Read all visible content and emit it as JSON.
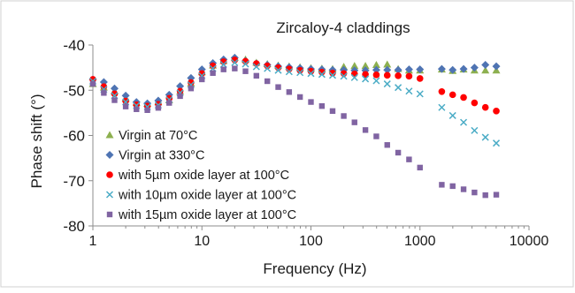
{
  "chart_data": {
    "type": "scatter",
    "title": "Zircaloy-4 claddings",
    "xlabel": "Frequency (Hz)",
    "ylabel": "Phase shift (°)",
    "xscale": "log",
    "xlim": [
      1,
      10000
    ],
    "ylim": [
      -80,
      -40
    ],
    "xticks": [
      "1",
      "10",
      "100",
      "1000",
      "10000"
    ],
    "yticks": [
      "-40",
      "-50",
      "-60",
      "-70",
      "-80"
    ],
    "grid": false,
    "legend_position": "bottom-left",
    "series": [
      {
        "name": "Virgin at 70°C",
        "marker": "triangle",
        "color": "#8db04f",
        "x": [
          1,
          1.26,
          1.58,
          2,
          2.51,
          3.16,
          3.98,
          5.01,
          6.31,
          7.94,
          10,
          12.6,
          15.8,
          20,
          25.1,
          31.6,
          39.8,
          50.1,
          63.1,
          79.4,
          100,
          126,
          158,
          200,
          251,
          316,
          398,
          501,
          631,
          794,
          1000,
          1585,
          1995,
          2512,
          3162,
          3981,
          5012
        ],
        "y": [
          -48.6,
          -49.4,
          -50.2,
          -51.8,
          -52.8,
          -53.0,
          -52.6,
          -52.2,
          -50.3,
          -48.5,
          -46.0,
          -44.5,
          -43.5,
          -42.8,
          -43.2,
          -43.9,
          -44.2,
          -44.5,
          -44.7,
          -44.9,
          -45.1,
          -45.2,
          -45.3,
          -44.8,
          -44.6,
          -44.6,
          -44.4,
          -44.3,
          -45.3,
          -45.6,
          -45.6,
          -45.4,
          -45.7,
          -45.4,
          -45.6,
          -45.6,
          -45.6
        ]
      },
      {
        "name": "Virgin at 330°C",
        "marker": "diamond",
        "color": "#4f74b3",
        "x": [
          1,
          1.26,
          1.58,
          2,
          2.51,
          3.16,
          3.98,
          5.01,
          6.31,
          7.94,
          10,
          12.6,
          15.8,
          20,
          25.1,
          31.6,
          39.8,
          50.1,
          63.1,
          79.4,
          100,
          126,
          158,
          200,
          251,
          316,
          398,
          501,
          631,
          794,
          1000,
          1585,
          1995,
          2512,
          3162,
          3981,
          5012
        ],
        "y": [
          -47.6,
          -48.2,
          -49.6,
          -51.2,
          -52.6,
          -52.9,
          -52.3,
          -51.0,
          -49.1,
          -47.3,
          -45.4,
          -44.0,
          -43.2,
          -42.8,
          -43.5,
          -44.1,
          -44.4,
          -44.7,
          -44.9,
          -45.1,
          -45.3,
          -45.4,
          -45.5,
          -45.5,
          -45.6,
          -45.6,
          -45.5,
          -45.5,
          -45.5,
          -45.4,
          -45.4,
          -45.3,
          -45.5,
          -45.3,
          -45.0,
          -44.4,
          -44.7
        ]
      },
      {
        "name": "with 5µm oxide layer at 100°C",
        "marker": "circle",
        "color": "#ff0000",
        "x": [
          1,
          1.26,
          1.58,
          2,
          2.51,
          3.16,
          3.98,
          5.01,
          6.31,
          7.94,
          10,
          12.6,
          15.8,
          20,
          25.1,
          31.6,
          39.8,
          50.1,
          63.1,
          79.4,
          100,
          126,
          158,
          200,
          251,
          316,
          398,
          501,
          631,
          794,
          1000,
          1585,
          1995,
          2512,
          3162,
          3981,
          5012
        ],
        "y": [
          -47.6,
          -49.2,
          -50.8,
          -52.4,
          -53.2,
          -53.5,
          -53.1,
          -51.8,
          -50.2,
          -48.3,
          -46.3,
          -44.6,
          -43.7,
          -43.3,
          -43.6,
          -44.1,
          -44.6,
          -45.0,
          -45.3,
          -45.6,
          -45.8,
          -46.0,
          -46.2,
          -46.3,
          -46.4,
          -46.5,
          -46.6,
          -46.7,
          -46.8,
          -46.9,
          -47.4,
          -50.3,
          -51.0,
          -51.6,
          -52.8,
          -53.8,
          -54.6
        ]
      },
      {
        "name": "with 10µm oxide layer at 100°C",
        "marker": "cross",
        "color": "#4bacc6",
        "x": [
          1,
          1.26,
          1.58,
          2,
          2.51,
          3.16,
          3.98,
          5.01,
          6.31,
          7.94,
          10,
          12.6,
          15.8,
          20,
          25.1,
          31.6,
          39.8,
          50.1,
          63.1,
          79.4,
          100,
          126,
          158,
          200,
          251,
          316,
          398,
          501,
          631,
          794,
          1000,
          1585,
          1995,
          2512,
          3162,
          3981,
          5012
        ],
        "y": [
          -48.0,
          -49.8,
          -51.2,
          -52.6,
          -53.4,
          -53.7,
          -53.3,
          -52.1,
          -50.6,
          -48.8,
          -46.8,
          -45.2,
          -44.3,
          -43.9,
          -44.2,
          -44.8,
          -45.2,
          -45.6,
          -45.9,
          -46.1,
          -46.3,
          -46.5,
          -46.7,
          -46.9,
          -47.2,
          -47.5,
          -47.9,
          -48.6,
          -49.4,
          -50.2,
          -50.8,
          -53.8,
          -55.6,
          -57.1,
          -58.9,
          -60.4,
          -61.7
        ]
      },
      {
        "name": "with 15µm oxide layer at 100°C",
        "marker": "square",
        "color": "#8064a2",
        "x": [
          1,
          1.26,
          1.58,
          2,
          2.51,
          3.16,
          3.98,
          5.01,
          6.31,
          7.94,
          10,
          12.6,
          15.8,
          20,
          25.1,
          31.6,
          39.8,
          50.1,
          63.1,
          79.4,
          100,
          126,
          158,
          200,
          251,
          316,
          398,
          501,
          631,
          794,
          1000,
          1585,
          1995,
          2512,
          3162,
          3981,
          5012
        ],
        "y": [
          -48.6,
          -50.6,
          -52.2,
          -53.6,
          -54.2,
          -54.4,
          -53.9,
          -52.8,
          -51.3,
          -49.6,
          -47.6,
          -46.2,
          -45.4,
          -45.2,
          -45.8,
          -46.8,
          -48.0,
          -49.3,
          -50.4,
          -51.5,
          -52.6,
          -53.5,
          -54.6,
          -55.7,
          -57.1,
          -58.8,
          -60.2,
          -62.1,
          -63.8,
          -65.3,
          -67.1,
          -70.9,
          -71.2,
          -71.9,
          -72.6,
          -73.2,
          -73.1
        ]
      }
    ]
  }
}
